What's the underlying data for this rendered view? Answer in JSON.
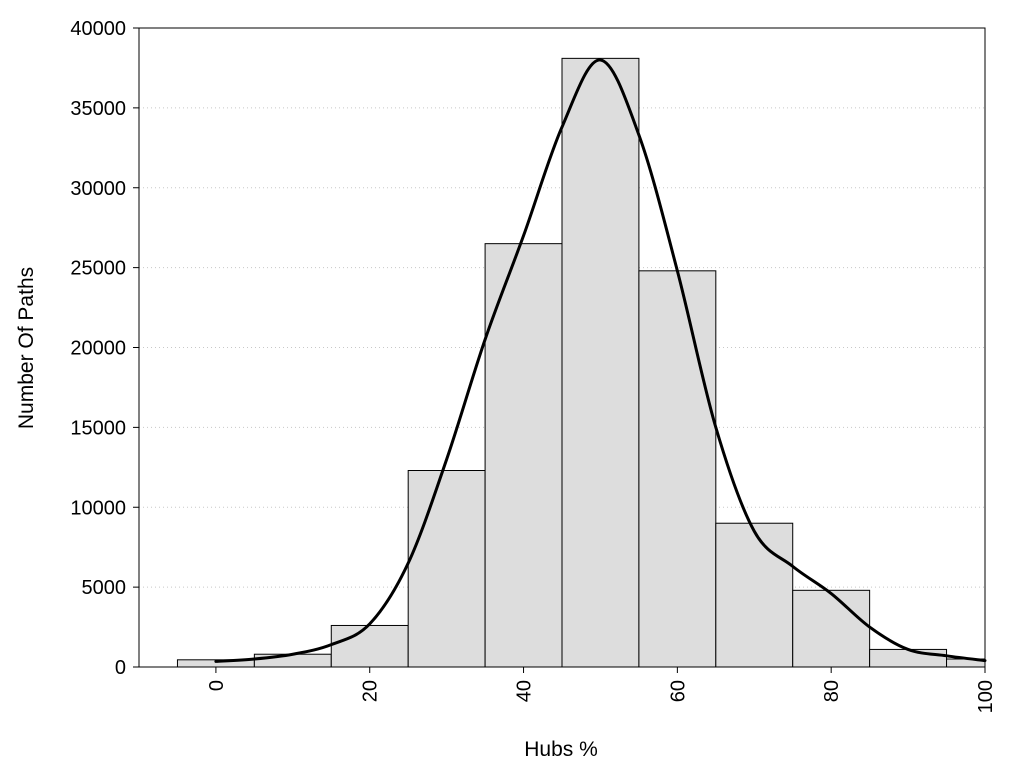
{
  "chart_data": {
    "type": "bar",
    "title": "",
    "xlabel": "Hubs %",
    "ylabel": "Number Of Paths",
    "xlim": [
      -10,
      100
    ],
    "ylim": [
      0,
      40000
    ],
    "grid": true,
    "x_ticks": [
      0,
      20,
      40,
      60,
      80,
      100
    ],
    "y_ticks": [
      0,
      5000,
      10000,
      15000,
      20000,
      25000,
      30000,
      35000,
      40000
    ],
    "bin_width": 10,
    "bin_centers": [
      0,
      10,
      20,
      30,
      40,
      50,
      60,
      70,
      80,
      90,
      100
    ],
    "values": [
      450,
      800,
      2600,
      12300,
      26500,
      38100,
      24800,
      9000,
      4800,
      1100,
      500
    ],
    "bar_color": "#dddddd",
    "density_curve": {
      "x": [
        0,
        5,
        10,
        15,
        20,
        25,
        30,
        35,
        40,
        45,
        50,
        55,
        60,
        65,
        70,
        75,
        80,
        85,
        90,
        95,
        100
      ],
      "y": [
        350,
        500,
        800,
        1400,
        2700,
        6500,
        13000,
        20500,
        27000,
        33800,
        38000,
        33300,
        24800,
        15000,
        8500,
        6300,
        4600,
        2500,
        1100,
        700,
        400
      ]
    }
  }
}
